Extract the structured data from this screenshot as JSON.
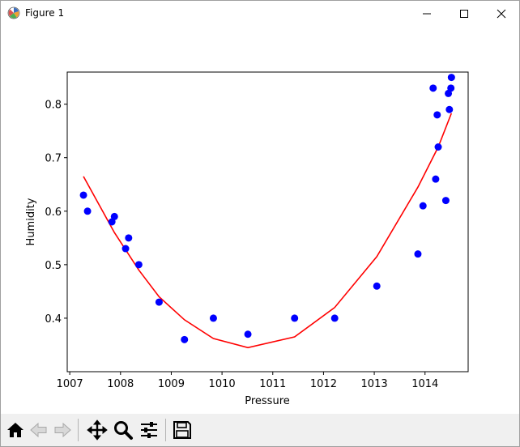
{
  "window": {
    "title": "Figure 1"
  },
  "toolbar": {
    "buttons": [
      {
        "name": "home-icon"
      },
      {
        "name": "back-icon"
      },
      {
        "name": "forward-icon"
      },
      {
        "name": "pan-icon"
      },
      {
        "name": "zoom-icon"
      },
      {
        "name": "configure-subplots-icon"
      },
      {
        "name": "save-icon"
      }
    ]
  },
  "chart_data": {
    "type": "scatter",
    "xlabel": "Pressure",
    "ylabel": "Humidity",
    "xlim": [
      1006.95,
      1014.85
    ],
    "ylim": [
      0.3,
      0.86
    ],
    "xticks": [
      1007,
      1008,
      1009,
      1010,
      1011,
      1012,
      1013,
      1014
    ],
    "yticks": [
      0.4,
      0.5,
      0.6,
      0.7,
      0.8
    ],
    "ytick_labels": [
      "0.4",
      "0.5",
      "0.6",
      "0.7",
      "0.8"
    ],
    "grid": false,
    "series": [
      {
        "kind": "scatter",
        "color": "#0000ff",
        "points": [
          [
            1007.27,
            0.63
          ],
          [
            1007.35,
            0.6
          ],
          [
            1007.83,
            0.58
          ],
          [
            1007.88,
            0.59
          ],
          [
            1008.1,
            0.53
          ],
          [
            1008.16,
            0.55
          ],
          [
            1008.36,
            0.5
          ],
          [
            1008.76,
            0.43
          ],
          [
            1009.26,
            0.36
          ],
          [
            1009.83,
            0.4
          ],
          [
            1010.51,
            0.37
          ],
          [
            1011.43,
            0.4
          ],
          [
            1012.22,
            0.4
          ],
          [
            1013.05,
            0.46
          ],
          [
            1013.86,
            0.52
          ],
          [
            1013.96,
            0.61
          ],
          [
            1014.16,
            0.83
          ],
          [
            1014.21,
            0.66
          ],
          [
            1014.24,
            0.78
          ],
          [
            1014.26,
            0.72
          ],
          [
            1014.41,
            0.62
          ],
          [
            1014.46,
            0.82
          ],
          [
            1014.48,
            0.79
          ],
          [
            1014.51,
            0.83
          ],
          [
            1014.52,
            0.85
          ]
        ]
      },
      {
        "kind": "line",
        "color": "#ff0000",
        "points": [
          [
            1007.27,
            0.665
          ],
          [
            1007.88,
            0.56
          ],
          [
            1008.36,
            0.49
          ],
          [
            1008.76,
            0.44
          ],
          [
            1009.26,
            0.397
          ],
          [
            1009.83,
            0.362
          ],
          [
            1010.51,
            0.345
          ],
          [
            1011.43,
            0.365
          ],
          [
            1012.22,
            0.42
          ],
          [
            1013.05,
            0.515
          ],
          [
            1013.86,
            0.645
          ],
          [
            1014.26,
            0.72
          ],
          [
            1014.52,
            0.783
          ]
        ]
      }
    ]
  }
}
